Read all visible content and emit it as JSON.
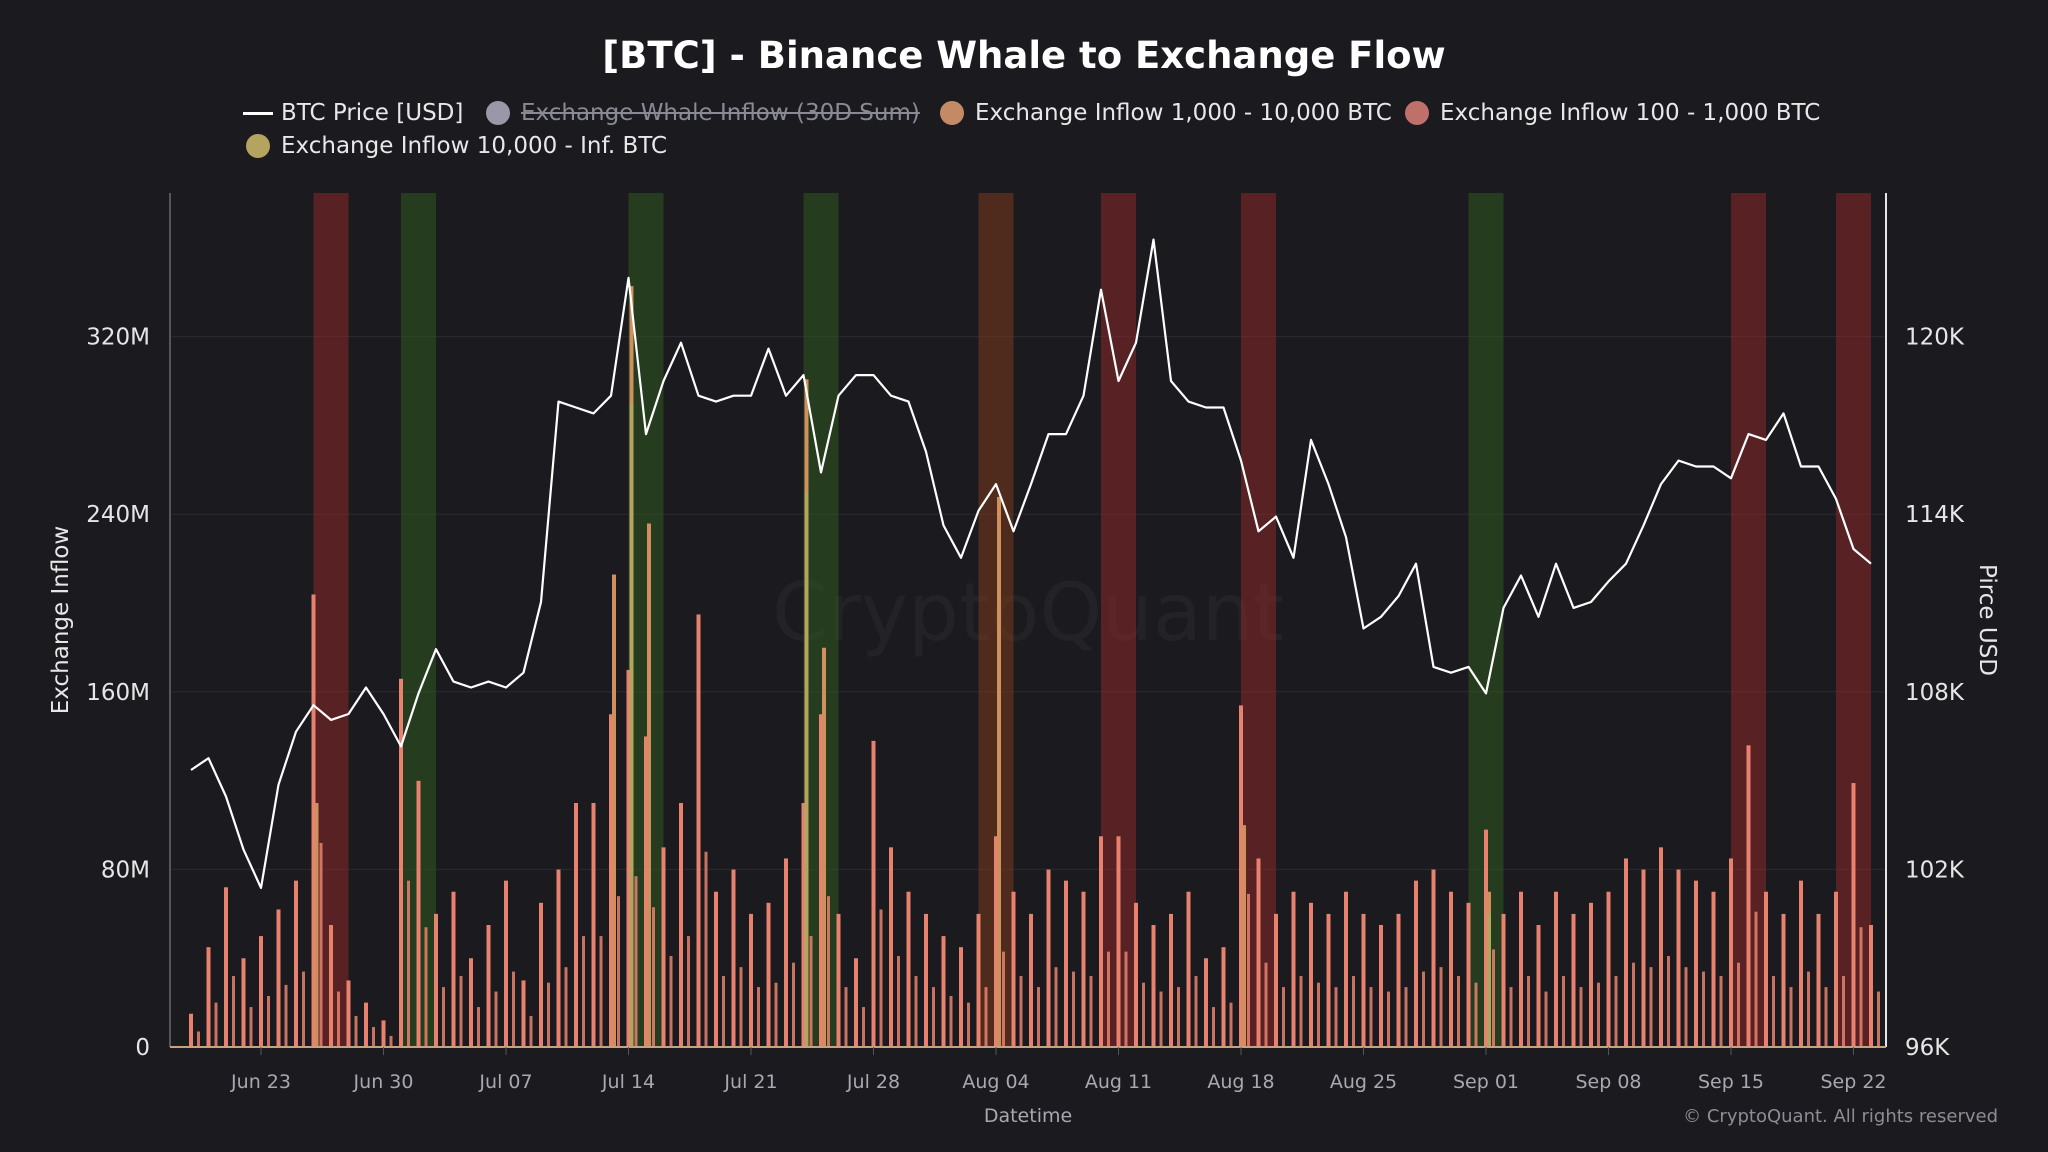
{
  "chart_data": {
    "type": "bar+line",
    "title": "[BTC] - Binance Whale to Exchange Flow",
    "xlabel": "Datetime",
    "ylabel_left": "Exchange Inflow",
    "ylabel_right": "Pirce USD",
    "y_left_ticks": [
      "0",
      "80M",
      "160M",
      "240M",
      "320M"
    ],
    "y_left_range": [
      0,
      385000000
    ],
    "y_right_ticks": [
      "96K",
      "102K",
      "108K",
      "114K",
      "120K"
    ],
    "y_right_range": [
      96000,
      124980
    ],
    "x_ticks": [
      "Jun 23",
      "Jun 30",
      "Jul 07",
      "Jul 14",
      "Jul 21",
      "Jul 28",
      "Aug 04",
      "Aug 11",
      "Aug 18",
      "Aug 25",
      "Sep 01",
      "Sep 08",
      "Sep 15",
      "Sep 22"
    ],
    "x_start": "Jun 19",
    "x_step": "1 day",
    "grid": true,
    "legend_placement": "top",
    "watermark": "CryptoQuant",
    "copyright": "© CryptoQuant. All rights reserved",
    "legend": [
      {
        "label": "BTC Price [USD]",
        "kind": "line",
        "color": "#ffffff",
        "hidden": false
      },
      {
        "label": "Exchange Whale Inflow (30D Sum)",
        "kind": "dot",
        "color": "#9a97a8",
        "hidden": true
      },
      {
        "label": "Exchange Inflow 1,000 - 10,000 BTC",
        "kind": "dot",
        "color": "#c48a66",
        "hidden": false
      },
      {
        "label": "Exchange Inflow 100 - 1,000 BTC",
        "kind": "dot",
        "color": "#c0706a",
        "hidden": false
      },
      {
        "label": "Exchange Inflow 10,000 - Inf. BTC",
        "kind": "dot",
        "color": "#b5a460",
        "hidden": false
      }
    ],
    "series": [
      {
        "name": "BTC Price [USD]",
        "axis": "right",
        "type": "line",
        "color": "#ffffff",
        "values": [
          105400,
          105800,
          104500,
          102700,
          101400,
          104900,
          106700,
          107600,
          107100,
          107300,
          108200,
          107300,
          106200,
          108000,
          109500,
          108400,
          108200,
          108400,
          108200,
          108700,
          111100,
          117900,
          117700,
          117500,
          118100,
          122100,
          116800,
          118600,
          119900,
          118100,
          117900,
          118100,
          118100,
          119700,
          118100,
          118800,
          115500,
          118100,
          118800,
          118800,
          118100,
          117900,
          116200,
          113700,
          112600,
          114200,
          115100,
          113500,
          115100,
          116800,
          116800,
          118100,
          121700,
          118600,
          119900,
          123400,
          118600,
          117900,
          117700,
          117700,
          115900,
          113500,
          114000,
          112600,
          116600,
          115100,
          113300,
          110200,
          110600,
          111300,
          112400,
          108900,
          108700,
          108900,
          108000,
          110900,
          112000,
          110600,
          112400,
          110900,
          111100,
          111800,
          112400,
          113700,
          115100,
          115900,
          115700,
          115700,
          115300,
          116800,
          116600,
          117500,
          115700,
          115700,
          114600,
          112900,
          112400
        ]
      },
      {
        "name": "Exchange Inflow 100 - 1,000 BTC",
        "axis": "left",
        "type": "bar",
        "color": "#e8826f",
        "values": [
          15,
          45,
          72,
          40,
          50,
          62,
          75,
          204,
          55,
          30,
          20,
          12,
          166,
          120,
          60,
          70,
          40,
          55,
          75,
          30,
          65,
          80,
          110,
          110,
          150,
          170,
          140,
          90,
          110,
          195,
          70,
          80,
          60,
          65,
          85,
          110,
          150,
          60,
          40,
          138,
          90,
          70,
          60,
          50,
          45,
          60,
          95,
          70,
          60,
          80,
          75,
          70,
          95,
          95,
          65,
          55,
          60,
          70,
          40,
          45,
          154,
          85,
          60,
          70,
          65,
          60,
          70,
          60,
          55,
          60,
          75,
          80,
          70,
          65,
          98,
          60,
          70,
          55,
          70,
          60,
          65,
          70,
          85,
          80,
          90,
          80,
          75,
          70,
          85,
          136,
          70,
          60,
          75,
          60,
          70,
          119,
          55
        ],
        "unit": "M"
      },
      {
        "name": "Exchange Inflow 1,000 - 10,000 BTC",
        "axis": "left",
        "type": "bar",
        "color": "#d0905e",
        "points": [
          {
            "date": "Jun 26",
            "value": 110
          },
          {
            "date": "Jul 13",
            "value": 213
          },
          {
            "date": "Jul 14",
            "value": 343
          },
          {
            "date": "Jul 15",
            "value": 236
          },
          {
            "date": "Jul 24",
            "value": 301
          },
          {
            "date": "Jul 25",
            "value": 180
          },
          {
            "date": "Aug 04",
            "value": 248
          },
          {
            "date": "Aug 18",
            "value": 100
          },
          {
            "date": "Sep 01",
            "value": 70
          }
        ],
        "unit": "M"
      },
      {
        "name": "Exchange Inflow 10,000 - Inf. BTC",
        "axis": "left",
        "type": "bar",
        "color": "#b5a460",
        "points": [
          {
            "date": "Jul 14",
            "value": 290
          },
          {
            "date": "Jul 24",
            "value": 250
          },
          {
            "date": "Sep 01",
            "value": 60
          }
        ],
        "unit": "M"
      }
    ],
    "highlight_bands": [
      {
        "from": "Jun 26",
        "to": "Jun 28",
        "color": "#8c2a2a"
      },
      {
        "from": "Jul 01",
        "to": "Jul 03",
        "color": "#2f5a1f"
      },
      {
        "from": "Jul 14",
        "to": "Jul 16",
        "color": "#2f5a1f"
      },
      {
        "from": "Jul 24",
        "to": "Jul 26",
        "color": "#2f5a1f"
      },
      {
        "from": "Aug 03",
        "to": "Aug 05",
        "color": "#7a3a1a"
      },
      {
        "from": "Aug 10",
        "to": "Aug 12",
        "color": "#8c2a2a"
      },
      {
        "from": "Aug 18",
        "to": "Aug 20",
        "color": "#8c2a2a"
      },
      {
        "from": "Aug 31",
        "to": "Sep 02",
        "color": "#2f5a1f"
      },
      {
        "from": "Sep 15",
        "to": "Sep 17",
        "color": "#8c2a2a"
      },
      {
        "from": "Sep 21",
        "to": "Sep 23",
        "color": "#8c2a2a"
      }
    ]
  }
}
